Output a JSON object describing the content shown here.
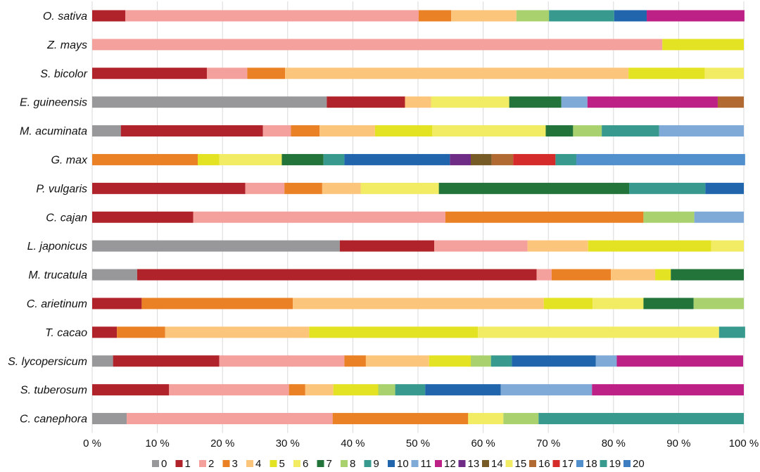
{
  "chart_data": {
    "type": "bar",
    "orientation": "horizontal",
    "stacked": true,
    "title": "",
    "xlabel": "",
    "ylabel": "",
    "xlim": [
      0,
      100
    ],
    "x_ticks": [
      "0 %",
      "10 %",
      "20 %",
      "30 %",
      "40 %",
      "50 %",
      "60 %",
      "70 %",
      "80 %",
      "90 %",
      "100 %"
    ],
    "grid": "vertical",
    "legend_position": "bottom",
    "categories": [
      "O. sativa",
      "Z. mays",
      "S. bicolor",
      "E. guineensis",
      "M. acuminata",
      "G. max",
      "P. vulgaris",
      "C. cajan",
      "L. japonicus",
      "M. trucatula",
      "C. arietinum",
      "T. cacao",
      "S. lycopersicum",
      "S. tuberosum",
      "C. canephora"
    ],
    "series": [
      {
        "name": "0",
        "color": "#98989b",
        "values": [
          0,
          0,
          0,
          36,
          4.4,
          0,
          0,
          0,
          38,
          6.9,
          0,
          0,
          3.2,
          0,
          5.3
        ]
      },
      {
        "name": "1",
        "color": "#b0232a",
        "values": [
          5.1,
          0,
          17.6,
          12,
          21.8,
          0,
          23.5,
          15.5,
          14.5,
          61.3,
          7.6,
          3.8,
          16.3,
          11.8,
          0
        ]
      },
      {
        "name": "2",
        "color": "#f4a09c",
        "values": [
          45,
          87.5,
          6.2,
          0,
          4.3,
          0,
          6,
          38.7,
          14.3,
          2.3,
          0,
          0,
          19.2,
          18.4,
          31.6
        ]
      },
      {
        "name": "3",
        "color": "#ea8125",
        "values": [
          5,
          0,
          5.8,
          0,
          4.4,
          16.2,
          5.8,
          30.4,
          0,
          9.1,
          23.2,
          7.4,
          3.3,
          2.5,
          20.8
        ]
      },
      {
        "name": "4",
        "color": "#fcc57c",
        "values": [
          10,
          0,
          52.7,
          4,
          8.5,
          0,
          5.9,
          0,
          9.3,
          6.8,
          38.5,
          22.1,
          9.7,
          4.3,
          0
        ]
      },
      {
        "name": "5",
        "color": "#e3e223",
        "values": [
          0,
          12.5,
          11.7,
          0,
          8.8,
          3.3,
          0,
          0,
          18.9,
          2.4,
          7.5,
          25.9,
          6.4,
          6.9,
          0
        ]
      },
      {
        "name": "6",
        "color": "#f2ec64",
        "values": [
          0,
          0,
          6,
          12,
          17.4,
          9.6,
          12,
          0,
          5,
          0,
          7.8,
          37,
          0,
          0,
          5.4
        ]
      },
      {
        "name": "7",
        "color": "#22743a",
        "values": [
          0,
          0,
          0,
          8,
          4.2,
          6.4,
          29.2,
          0,
          0,
          11.2,
          7.7,
          0,
          0,
          0,
          0
        ]
      },
      {
        "name": "8",
        "color": "#a9d26f",
        "values": [
          5,
          0,
          0,
          0,
          4.4,
          0,
          0,
          7.8,
          0,
          0,
          7.7,
          0,
          3.1,
          2.6,
          5.4
        ]
      },
      {
        "name": "9",
        "color": "#389a8e",
        "values": [
          10,
          0,
          0,
          0,
          8.8,
          3.2,
          11.7,
          0,
          0,
          0,
          0,
          4,
          3.2,
          4.6,
          31.5
        ]
      },
      {
        "name": "10",
        "color": "#2166ac",
        "values": [
          5,
          0,
          0,
          0,
          0,
          16.2,
          5.9,
          0,
          0,
          0,
          0,
          0,
          12.9,
          11.6,
          0
        ]
      },
      {
        "name": "11",
        "color": "#7fa9d6",
        "values": [
          0,
          0,
          0,
          4,
          13,
          0,
          0,
          7.6,
          0,
          0,
          0,
          0,
          3.2,
          14,
          0
        ]
      },
      {
        "name": "12",
        "color": "#be2186",
        "values": [
          15,
          0,
          0,
          20,
          0,
          0,
          0,
          0,
          0,
          0,
          0,
          0,
          19.4,
          23.3,
          0
        ]
      },
      {
        "name": "13",
        "color": "#6e2c86",
        "values": [
          0,
          0,
          0,
          0,
          0,
          3.2,
          0,
          0,
          0,
          0,
          0,
          0,
          0,
          0,
          0
        ]
      },
      {
        "name": "14",
        "color": "#775b26",
        "values": [
          0,
          0,
          0,
          0,
          0,
          3.2,
          0,
          0,
          0,
          0,
          0,
          0,
          0,
          0,
          0
        ]
      },
      {
        "name": "15",
        "color": "#f2ec64",
        "values": [
          0,
          0,
          0,
          0,
          0,
          0,
          0,
          0,
          0,
          0,
          0,
          0,
          0,
          0,
          0
        ]
      },
      {
        "name": "16",
        "color": "#b06a32",
        "values": [
          0,
          0,
          0,
          4,
          0,
          3.3,
          0,
          0,
          0,
          0,
          0,
          0,
          0,
          0,
          0
        ]
      },
      {
        "name": "17",
        "color": "#d52b2b",
        "values": [
          0,
          0,
          0,
          0,
          0,
          6.5,
          0,
          0,
          0,
          0,
          0,
          0,
          0,
          0,
          0
        ]
      },
      {
        "name": "18",
        "color": "#5190cc",
        "values": [
          0,
          0,
          0,
          0,
          0,
          25.9,
          0,
          0,
          0,
          0,
          0,
          0,
          0,
          0,
          0
        ]
      },
      {
        "name": "19",
        "color": "#389a8e",
        "values": [
          0,
          0,
          0,
          0,
          0,
          3.2,
          0,
          0,
          0,
          0,
          0,
          0,
          0,
          0,
          0
        ]
      },
      {
        "name": "20",
        "color": "#3f7fc1",
        "values": [
          0,
          0,
          0,
          0,
          0,
          0,
          0,
          0,
          0,
          0,
          0,
          0,
          0,
          0,
          0
        ]
      }
    ],
    "series_order_override": {
      "G. max": [
        "3",
        "5",
        "6",
        "7",
        "9",
        "10",
        "13",
        "14",
        "16",
        "17",
        "19",
        "18"
      ]
    }
  }
}
